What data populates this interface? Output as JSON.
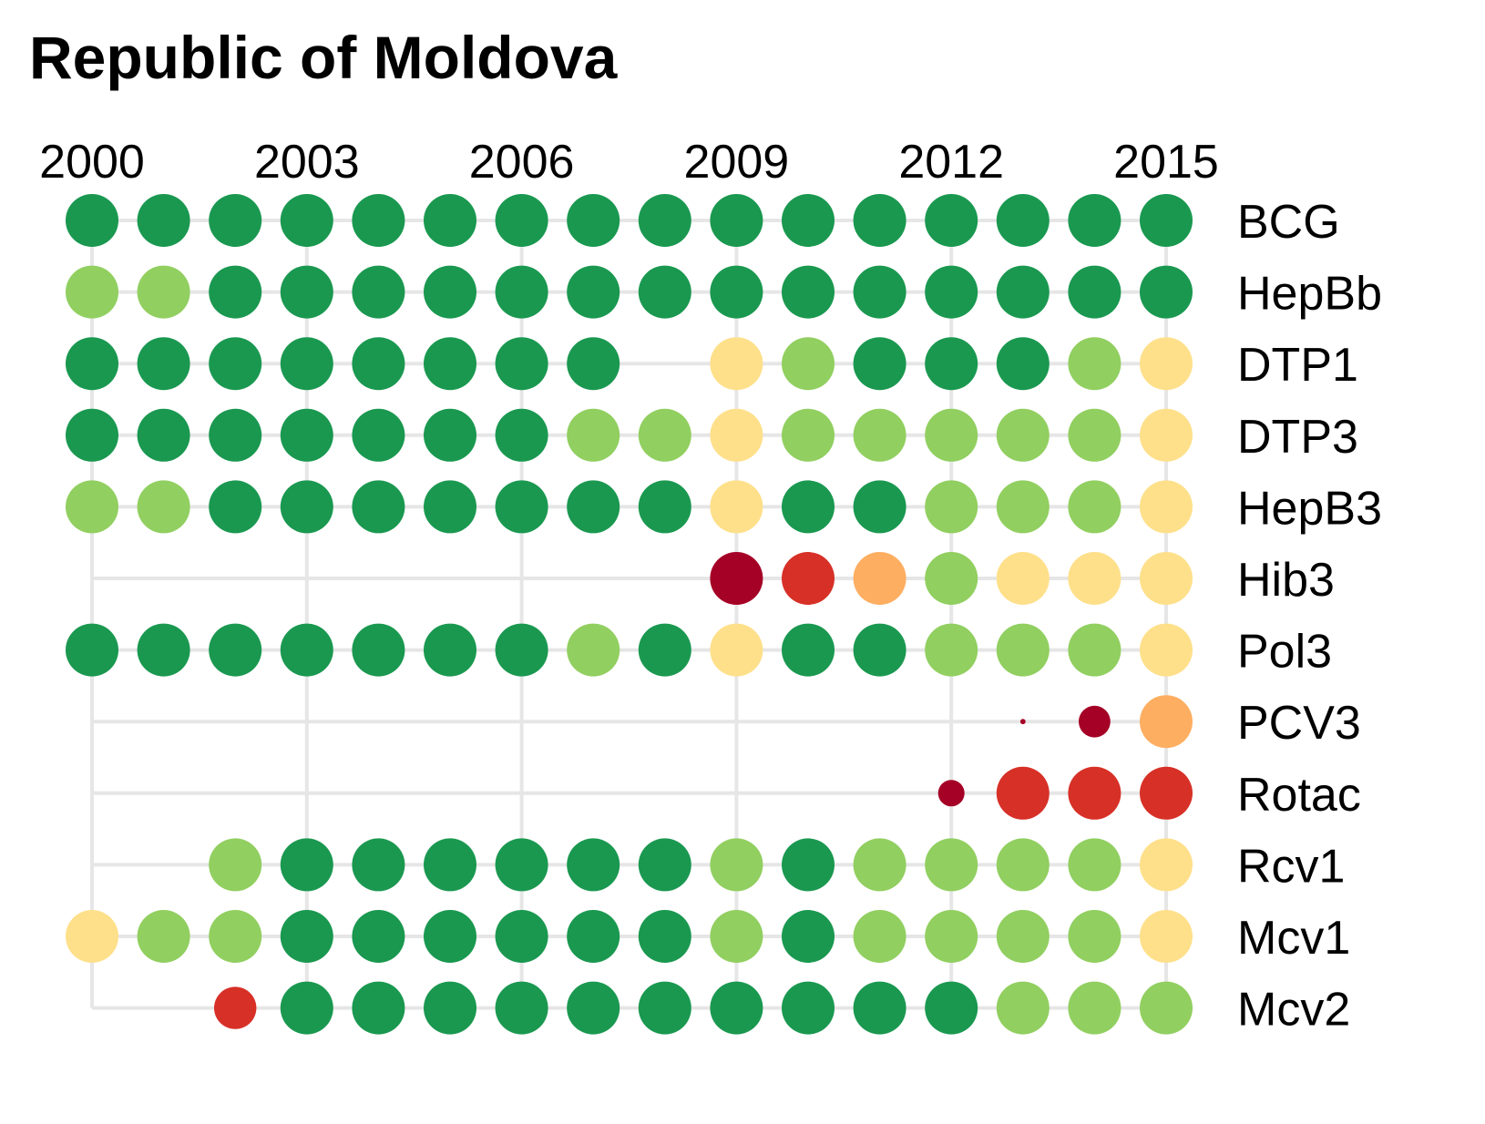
{
  "chart_data": {
    "type": "scatter",
    "title": "Republic of Moldova",
    "x": [
      2000,
      2001,
      2002,
      2003,
      2004,
      2005,
      2006,
      2007,
      2008,
      2009,
      2010,
      2011,
      2012,
      2013,
      2014,
      2015
    ],
    "x_tick_labels": [
      "2000",
      "2003",
      "2006",
      "2009",
      "2012",
      "2015"
    ],
    "x_tick_values": [
      2000,
      2003,
      2006,
      2009,
      2012,
      2015
    ],
    "xlim": [
      2000,
      2015
    ],
    "x_axis_position": "top",
    "grid": true,
    "legend": "none",
    "encoding": "colored dot per vaccine per year; dot color and size indicate coverage level",
    "colors": {
      "dark_green": "#1a9850",
      "light_green": "#91cf60",
      "yellow": "#fee08b",
      "orange": "#fdae61",
      "red": "#d73027",
      "dark_red": "#a50026"
    },
    "series": [
      {
        "name": "BCG",
        "levels": [
          "dark_green",
          "dark_green",
          "dark_green",
          "dark_green",
          "dark_green",
          "dark_green",
          "dark_green",
          "dark_green",
          "dark_green",
          "dark_green",
          "dark_green",
          "dark_green",
          "dark_green",
          "dark_green",
          "dark_green",
          "dark_green"
        ]
      },
      {
        "name": "HepBb",
        "levels": [
          "light_green",
          "light_green",
          "dark_green",
          "dark_green",
          "dark_green",
          "dark_green",
          "dark_green",
          "dark_green",
          "dark_green",
          "dark_green",
          "dark_green",
          "dark_green",
          "dark_green",
          "dark_green",
          "dark_green",
          "dark_green"
        ]
      },
      {
        "name": "DTP1",
        "levels": [
          "dark_green",
          "dark_green",
          "dark_green",
          "dark_green",
          "dark_green",
          "dark_green",
          "dark_green",
          "dark_green",
          "yellow",
          "light_green",
          "dark_green",
          "dark_green",
          "dark_green",
          "light_green",
          "yellow"
        ],
        "x": [
          2000,
          2001,
          2002,
          2003,
          2004,
          2005,
          2006,
          2007,
          2009,
          2010,
          2011,
          2012,
          2013,
          2014,
          2015
        ]
      },
      {
        "name": "DTP3",
        "levels": [
          "dark_green",
          "dark_green",
          "dark_green",
          "dark_green",
          "dark_green",
          "dark_green",
          "dark_green",
          "light_green",
          "light_green",
          "yellow",
          "light_green",
          "light_green",
          "light_green",
          "light_green",
          "light_green",
          "yellow"
        ]
      },
      {
        "name": "HepB3",
        "levels": [
          "light_green",
          "light_green",
          "dark_green",
          "dark_green",
          "dark_green",
          "dark_green",
          "dark_green",
          "dark_green",
          "dark_green",
          "yellow",
          "dark_green",
          "dark_green",
          "light_green",
          "light_green",
          "light_green",
          "yellow"
        ]
      },
      {
        "name": "Hib3",
        "levels": [
          "dark_red",
          "red",
          "orange",
          "light_green",
          "yellow",
          "yellow",
          "yellow"
        ],
        "x": [
          2009,
          2010,
          2011,
          2012,
          2013,
          2014,
          2015
        ]
      },
      {
        "name": "Pol3",
        "levels": [
          "dark_green",
          "dark_green",
          "dark_green",
          "dark_green",
          "dark_green",
          "dark_green",
          "dark_green",
          "light_green",
          "dark_green",
          "yellow",
          "dark_green",
          "dark_green",
          "light_green",
          "light_green",
          "light_green",
          "yellow"
        ]
      },
      {
        "name": "PCV3",
        "levels": [
          "dark_red",
          "dark_red",
          "orange"
        ],
        "x": [
          2013,
          2014,
          2015
        ],
        "size": [
          0.1,
          0.6,
          1.0
        ]
      },
      {
        "name": "Rotac",
        "levels": [
          "dark_red",
          "red",
          "red",
          "red"
        ],
        "x": [
          2012,
          2013,
          2014,
          2015
        ],
        "size": [
          0.5,
          1.0,
          1.0,
          1.0
        ]
      },
      {
        "name": "Rcv1",
        "levels": [
          "light_green",
          "dark_green",
          "dark_green",
          "dark_green",
          "dark_green",
          "dark_green",
          "dark_green",
          "light_green",
          "dark_green",
          "light_green",
          "light_green",
          "light_green",
          "light_green",
          "yellow"
        ],
        "x": [
          2002,
          2003,
          2004,
          2005,
          2006,
          2007,
          2008,
          2009,
          2010,
          2011,
          2012,
          2013,
          2014,
          2015
        ]
      },
      {
        "name": "Mcv1",
        "levels": [
          "yellow",
          "light_green",
          "light_green",
          "dark_green",
          "dark_green",
          "dark_green",
          "dark_green",
          "dark_green",
          "dark_green",
          "light_green",
          "dark_green",
          "light_green",
          "light_green",
          "light_green",
          "light_green",
          "yellow"
        ]
      },
      {
        "name": "Mcv2",
        "levels": [
          "red",
          "dark_green",
          "dark_green",
          "dark_green",
          "dark_green",
          "dark_green",
          "dark_green",
          "dark_green",
          "dark_green",
          "dark_green",
          "dark_green",
          "light_green",
          "light_green",
          "light_green"
        ],
        "x": [
          2002,
          2003,
          2004,
          2005,
          2006,
          2007,
          2008,
          2009,
          2010,
          2011,
          2012,
          2013,
          2014,
          2015
        ],
        "size": [
          0.8,
          1,
          1,
          1,
          1,
          1,
          1,
          1,
          1,
          1,
          1,
          1,
          1,
          1
        ]
      }
    ]
  }
}
